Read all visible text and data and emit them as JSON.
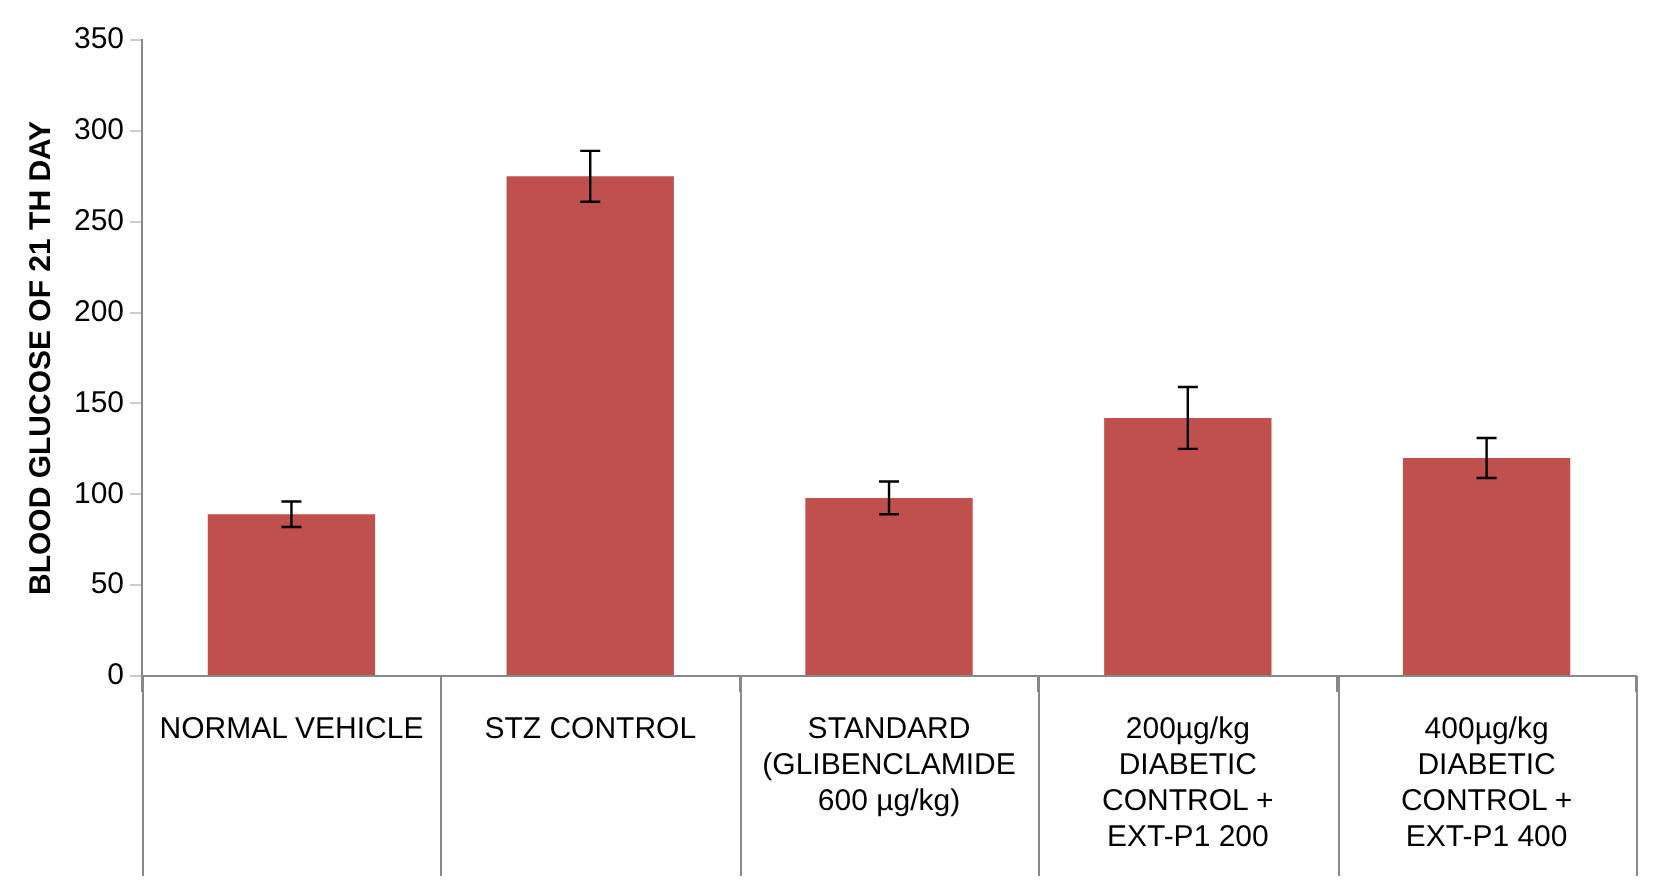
{
  "chart_data": {
    "type": "bar",
    "ylabel": "BLOOD GLUCOSE OF 21 TH DAY",
    "categories": [
      "NORMAL VEHICLE",
      "STZ CONTROL",
      "STANDARD (GLIBENCLAMIDE 600 µg/kg)",
      "200µg/kg DIABETIC CONTROL + EXT-P1 200",
      "400µg/kg DIABETIC CONTROL + EXT-P1 400"
    ],
    "values": [
      89,
      275,
      98,
      142,
      120
    ],
    "errors": [
      7,
      14,
      9,
      17,
      11
    ],
    "color": "#c0504d",
    "ylim": [
      0,
      350
    ],
    "yticks": [
      0,
      50,
      100,
      150,
      200,
      250,
      300,
      350
    ],
    "grid": false
  }
}
